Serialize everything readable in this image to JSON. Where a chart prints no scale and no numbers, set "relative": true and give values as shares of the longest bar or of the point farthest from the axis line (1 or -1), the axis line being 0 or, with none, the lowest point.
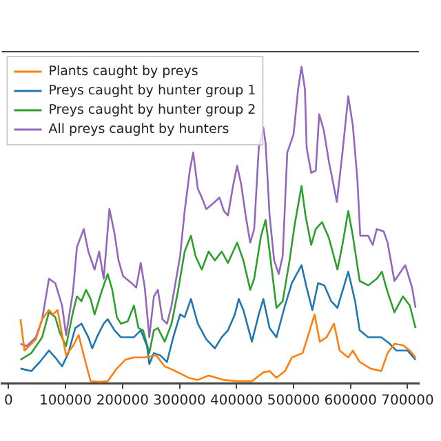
{
  "chart_data": {
    "type": "line",
    "relative": true,
    "legend": "top left",
    "marker": "none",
    "line_style": "solid",
    "grid": false,
    "xlim": [
      -12000,
      720000
    ],
    "xticks": [
      0,
      100000,
      200000,
      300000,
      400000,
      500000,
      600000,
      700000
    ],
    "series": [
      {
        "name": "Plants caught by preys",
        "color": "#ff7f0e",
        "x": [
          21000,
          28000,
          48000,
          59000,
          71000,
          78000,
          86000,
          94000,
          101000,
          113000,
          123000,
          132000,
          144000,
          159000,
          174000,
          190000,
          205000,
          220000,
          239000,
          259000,
          274000,
          293000,
          316000,
          332000,
          351000,
          378000,
          401000,
          427000,
          447000,
          458000,
          470000,
          485000,
          497000,
          516000,
          527000,
          537000,
          546000,
          558000,
          571000,
          581000,
          596000,
          604000,
          616000,
          635000,
          654000,
          665000,
          677000,
          692000,
          704000,
          714000
        ],
        "values": [
          0.202,
          0.103,
          0.138,
          0.202,
          0.231,
          0.217,
          0.231,
          0.152,
          0.088,
          0.117,
          0.152,
          0.088,
          0.006,
          0.004,
          0.006,
          0.046,
          0.074,
          0.081,
          0.081,
          0.088,
          0.053,
          0.038,
          0.017,
          0.01,
          0.024,
          0.01,
          0.006,
          0.006,
          0.034,
          0.038,
          0.017,
          0.038,
          0.081,
          0.095,
          0.159,
          0.217,
          0.131,
          0.145,
          0.188,
          0.103,
          0.081,
          0.103,
          0.067,
          0.046,
          0.038,
          0.095,
          0.124,
          0.12,
          0.103,
          0.081
        ]
      },
      {
        "name": "Preys caught by hunter group 1",
        "color": "#1f77b4",
        "x": [
          21000,
          40000,
          55000,
          71000,
          82000,
          94000,
          105000,
          117000,
          128000,
          140000,
          147000,
          155000,
          167000,
          174000,
          186000,
          197000,
          209000,
          220000,
          232000,
          243000,
          247000,
          255000,
          266000,
          278000,
          289000,
          301000,
          309000,
          320000,
          332000,
          347000,
          362000,
          374000,
          385000,
          397000,
          404000,
          412000,
          427000,
          439000,
          447000,
          458000,
          470000,
          485000,
          497000,
          514000,
          523000,
          533000,
          543000,
          554000,
          566000,
          577000,
          596000,
          608000,
          616000,
          631000,
          654000,
          669000,
          680000,
          700000,
          714000
        ],
        "values": [
          0.046,
          0.038,
          0.067,
          0.103,
          0.081,
          0.053,
          0.095,
          0.174,
          0.188,
          0.145,
          0.11,
          0.145,
          0.188,
          0.202,
          0.167,
          0.145,
          0.145,
          0.145,
          0.167,
          0.117,
          0.06,
          0.095,
          0.088,
          0.067,
          0.145,
          0.217,
          0.209,
          0.266,
          0.188,
          0.138,
          0.11,
          0.145,
          0.167,
          0.217,
          0.266,
          0.231,
          0.131,
          0.217,
          0.266,
          0.174,
          0.145,
          0.245,
          0.316,
          0.373,
          0.302,
          0.231,
          0.316,
          0.309,
          0.259,
          0.238,
          0.352,
          0.259,
          0.167,
          0.145,
          0.145,
          0.124,
          0.103,
          0.103,
          0.074
        ]
      },
      {
        "name": "Preys caught by hunter group 2",
        "color": "#2ca02c",
        "x": [
          21000,
          40000,
          59000,
          71000,
          82000,
          90000,
          101000,
          113000,
          120000,
          128000,
          136000,
          144000,
          151000,
          163000,
          174000,
          182000,
          190000,
          197000,
          209000,
          220000,
          228000,
          236000,
          247000,
          255000,
          262000,
          274000,
          286000,
          297000,
          309000,
          320000,
          328000,
          339000,
          351000,
          362000,
          374000,
          385000,
          401000,
          412000,
          424000,
          431000,
          443000,
          451000,
          458000,
          470000,
          481000,
          493000,
          502000,
          514000,
          521000,
          531000,
          539000,
          550000,
          562000,
          577000,
          585000,
          596000,
          604000,
          616000,
          631000,
          646000,
          655000,
          665000,
          677000,
          692000,
          704000,
          714000
        ],
        "values": [
          0.074,
          0.095,
          0.145,
          0.224,
          0.209,
          0.159,
          0.117,
          0.224,
          0.274,
          0.259,
          0.295,
          0.266,
          0.217,
          0.288,
          0.345,
          0.295,
          0.209,
          0.188,
          0.195,
          0.245,
          0.174,
          0.167,
          0.095,
          0.167,
          0.174,
          0.131,
          0.188,
          0.288,
          0.416,
          0.466,
          0.402,
          0.359,
          0.416,
          0.388,
          0.416,
          0.38,
          0.444,
          0.388,
          0.295,
          0.33,
          0.466,
          0.516,
          0.416,
          0.238,
          0.259,
          0.388,
          0.501,
          0.623,
          0.53,
          0.437,
          0.487,
          0.509,
          0.459,
          0.359,
          0.43,
          0.544,
          0.466,
          0.323,
          0.309,
          0.33,
          0.352,
          0.288,
          0.224,
          0.274,
          0.245,
          0.174
        ]
      },
      {
        "name": "All preys caught by hunters",
        "color": "#9467bd",
        "x": [
          21000,
          32000,
          48000,
          59000,
          71000,
          82000,
          94000,
          101000,
          113000,
          120000,
          132000,
          140000,
          151000,
          159000,
          167000,
          177000,
          186000,
          193000,
          201000,
          216000,
          224000,
          232000,
          239000,
          247000,
          255000,
          262000,
          270000,
          278000,
          286000,
          301000,
          309000,
          318000,
          324000,
          332000,
          339000,
          347000,
          362000,
          370000,
          378000,
          385000,
          393000,
          401000,
          408000,
          416000,
          424000,
          431000,
          439000,
          447000,
          451000,
          458000,
          466000,
          474000,
          481000,
          489000,
          500000,
          508000,
          514000,
          520000,
          523000,
          531000,
          539000,
          545000,
          553000,
          562000,
          576000,
          585000,
          596000,
          604000,
          612000,
          617000,
          631000,
          639000,
          646000,
          658000,
          665000,
          677000,
          696000,
          708000,
          714000
        ],
        "values": [
          0.124,
          0.117,
          0.145,
          0.202,
          0.33,
          0.316,
          0.245,
          0.152,
          0.288,
          0.43,
          0.487,
          0.416,
          0.359,
          0.416,
          0.33,
          0.551,
          0.473,
          0.388,
          0.338,
          0.316,
          0.302,
          0.38,
          0.302,
          0.145,
          0.274,
          0.295,
          0.202,
          0.188,
          0.245,
          0.402,
          0.544,
          0.672,
          0.729,
          0.615,
          0.587,
          0.55,
          0.573,
          0.587,
          0.544,
          0.53,
          0.615,
          0.687,
          0.63,
          0.53,
          0.444,
          0.487,
          0.744,
          0.808,
          0.758,
          0.53,
          0.388,
          0.345,
          0.402,
          0.729,
          0.786,
          0.929,
          1,
          0.929,
          0.744,
          0.665,
          0.672,
          0.85,
          0.8,
          0.701,
          0.573,
          0.715,
          0.907,
          0.815,
          0.644,
          0.466,
          0.466,
          0.437,
          0.487,
          0.48,
          0.444,
          0.323,
          0.373,
          0.302,
          0.238
        ]
      }
    ]
  }
}
